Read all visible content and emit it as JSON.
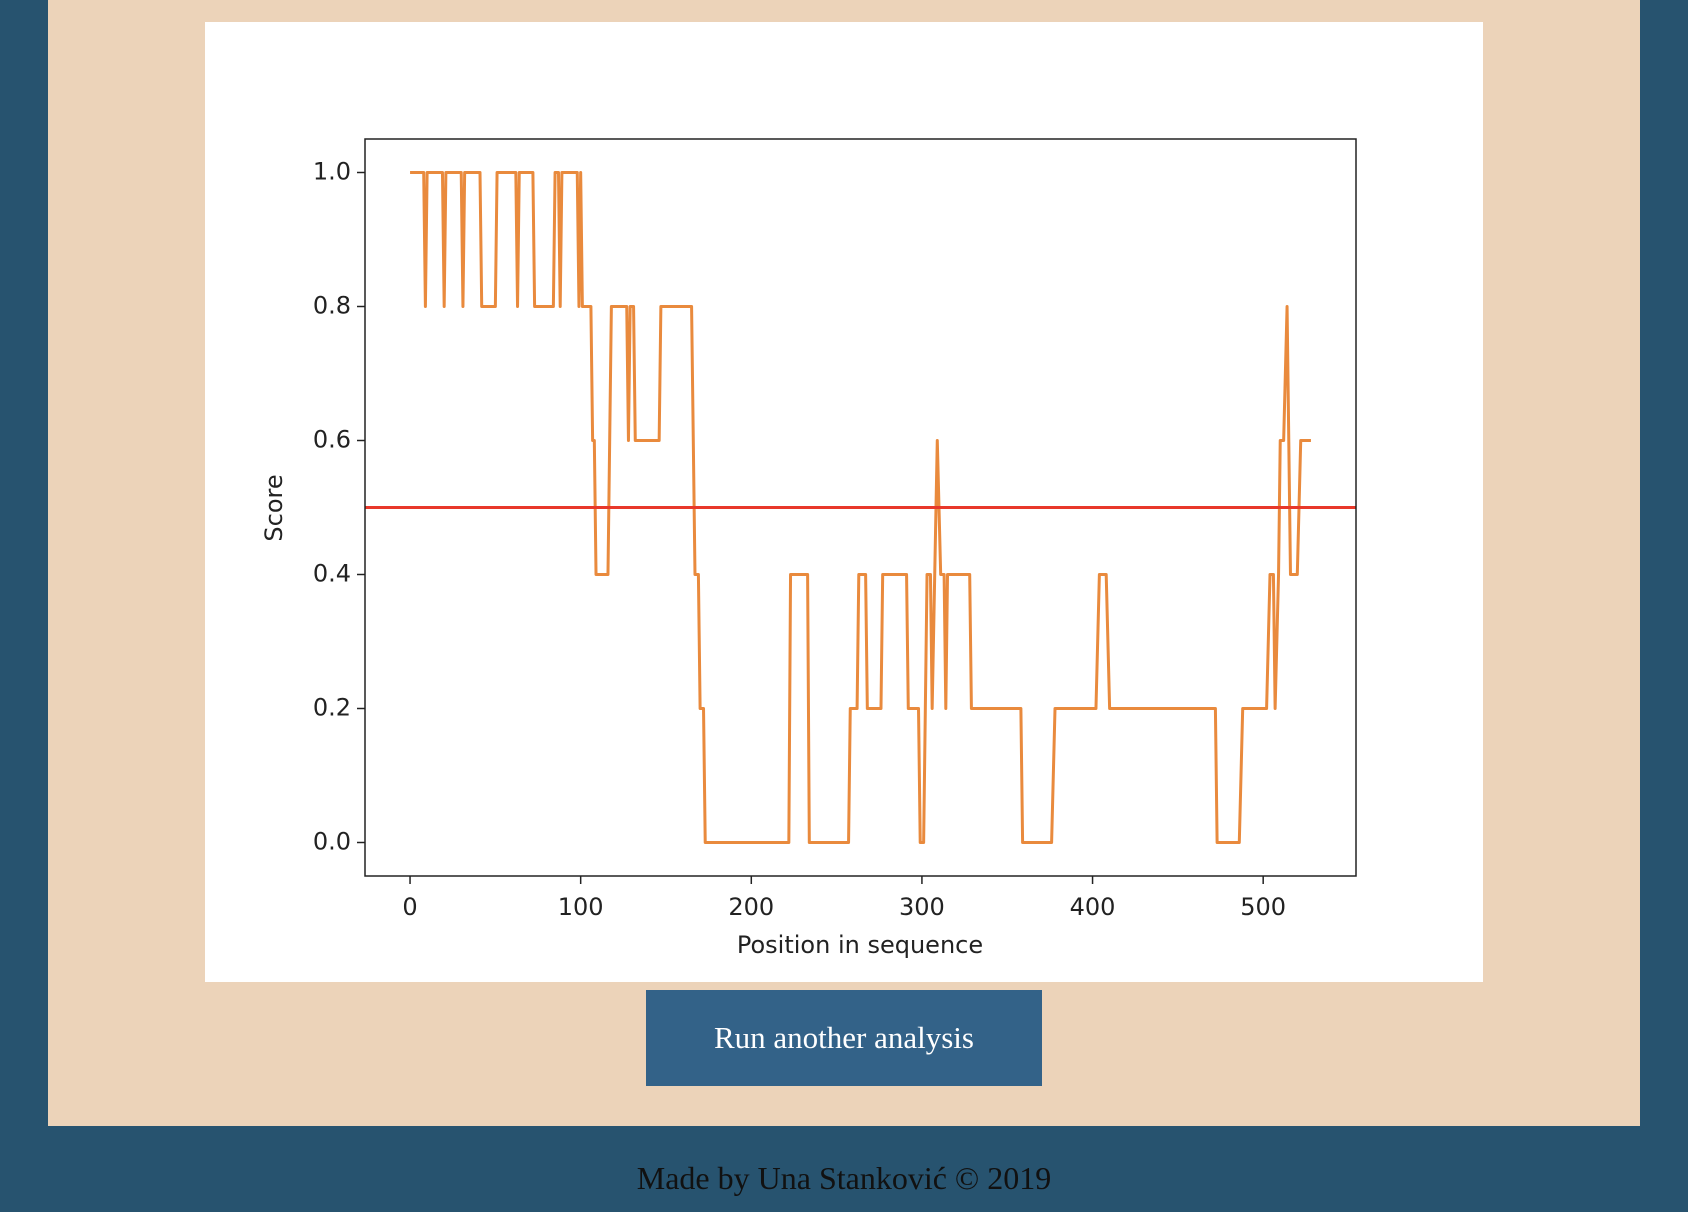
{
  "chart_data": {
    "type": "line",
    "xlabel": "Position in sequence",
    "ylabel": "Score",
    "x": [
      0,
      8,
      9,
      10,
      19,
      20,
      21,
      30,
      31,
      32,
      41,
      42,
      50,
      51,
      62,
      63,
      64,
      72,
      73,
      84,
      85,
      87,
      88,
      89,
      98,
      99,
      100,
      101,
      106,
      107,
      108,
      109,
      116,
      117,
      118,
      127,
      128,
      129,
      131,
      132,
      146,
      147,
      165,
      166,
      167,
      169,
      170,
      172,
      173,
      222,
      223,
      233,
      234,
      257,
      258,
      262,
      263,
      267,
      268,
      276,
      277,
      291,
      292,
      298,
      299,
      301,
      302,
      303,
      305,
      306,
      309,
      311,
      313,
      314,
      315,
      328,
      329,
      358,
      359,
      376,
      378,
      402,
      404,
      408,
      410,
      472,
      473,
      486,
      488,
      502,
      504,
      506,
      507,
      509,
      510,
      512,
      514,
      516,
      520,
      522,
      528
    ],
    "values": [
      1,
      1,
      0.8,
      1,
      1,
      0.8,
      1,
      1,
      0.8,
      1,
      1,
      0.8,
      0.8,
      1,
      1,
      0.8,
      1,
      1,
      0.8,
      0.8,
      1,
      1,
      0.8,
      1,
      1,
      0.8,
      1,
      0.8,
      0.8,
      0.6,
      0.6,
      0.4,
      0.4,
      0.6,
      0.8,
      0.8,
      0.6,
      0.8,
      0.8,
      0.6,
      0.6,
      0.8,
      0.8,
      0.6,
      0.4,
      0.4,
      0.2,
      0.2,
      0,
      0,
      0.4,
      0.4,
      0,
      0,
      0.2,
      0.2,
      0.4,
      0.4,
      0.2,
      0.2,
      0.4,
      0.4,
      0.2,
      0.2,
      0,
      0,
      0.2,
      0.4,
      0.4,
      0.2,
      0.6,
      0.4,
      0.4,
      0.2,
      0.4,
      0.4,
      0.2,
      0.2,
      0,
      0,
      0.2,
      0.2,
      0.4,
      0.4,
      0.2,
      0.2,
      0,
      0,
      0.2,
      0.2,
      0.4,
      0.4,
      0.2,
      0.4,
      0.6,
      0.6,
      0.8,
      0.4,
      0.4,
      0.6,
      0.6
    ],
    "color": "#e98a3d",
    "threshold": 0.5,
    "threshold_color": "#e8382a",
    "xlim": [
      -26.4,
      554.4
    ],
    "xticks": [
      0,
      100,
      200,
      300,
      400,
      500
    ],
    "ylim": [
      -0.05,
      1.05
    ],
    "yticks": [
      {
        "value": 0,
        "label": "0.0"
      },
      0.2,
      0.4,
      0.6,
      0.8,
      {
        "value": 1,
        "label": "1.0"
      }
    ],
    "grid": false
  },
  "button": {
    "label": "Run another analysis"
  },
  "footer": {
    "text": "Made by Una Stanković © 2019"
  }
}
